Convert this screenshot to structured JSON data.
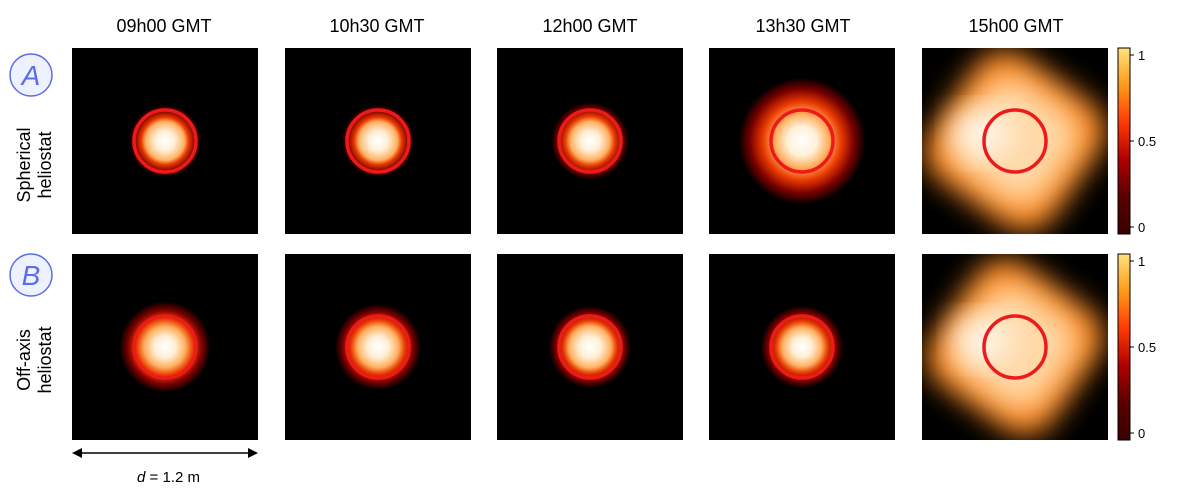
{
  "chart_data": {
    "type": "heatmap",
    "columns": [
      "09h00 GMT",
      "10h30 GMT",
      "12h00 GMT",
      "13h30 GMT",
      "15h00 GMT"
    ],
    "rows": [
      {
        "badge": "A",
        "label_line1": "Spherical",
        "label_line2": "heliostat",
        "panels": [
          {
            "spot_width": 0.3,
            "peak": 1.0,
            "spread": 0.1,
            "skew": 0.0
          },
          {
            "spot_width": 0.3,
            "peak": 1.0,
            "spread": 0.1,
            "skew": 0.0
          },
          {
            "spot_width": 0.3,
            "peak": 1.0,
            "spread": 0.12,
            "skew": 0.0
          },
          {
            "spot_width": 0.45,
            "peak": 0.95,
            "spread": 0.22,
            "skew": 0.0
          },
          {
            "spot_width": 0.8,
            "peak": 0.85,
            "spread": 0.3,
            "skew": 0.5
          }
        ]
      },
      {
        "badge": "B",
        "label_line1": "Off-axis",
        "label_line2": "heliostat",
        "panels": [
          {
            "spot_width": 0.32,
            "peak": 1.0,
            "spread": 0.16,
            "skew": 0.0
          },
          {
            "spot_width": 0.32,
            "peak": 1.0,
            "spread": 0.14,
            "skew": 0.0
          },
          {
            "spot_width": 0.33,
            "peak": 1.0,
            "spread": 0.12,
            "skew": 0.0
          },
          {
            "spot_width": 0.3,
            "peak": 1.0,
            "spread": 0.14,
            "skew": 0.0
          },
          {
            "spot_width": 0.78,
            "peak": 0.85,
            "spread": 0.3,
            "skew": 0.5
          }
        ]
      }
    ],
    "colorbar": {
      "ticks": [
        {
          "value": 1,
          "label": "1"
        },
        {
          "value": 0.5,
          "label": "0.5"
        },
        {
          "value": 0,
          "label": "0"
        }
      ],
      "range": [
        0,
        1
      ]
    },
    "scale_bar": {
      "symbol": "d",
      "text": " = 1.2 m"
    },
    "target_circle_color": "#ee1a1a",
    "colormap": [
      "#000000",
      "#5a0000",
      "#b00000",
      "#ff3a00",
      "#ff9a1a",
      "#ffe27a",
      "#ffffff"
    ]
  }
}
